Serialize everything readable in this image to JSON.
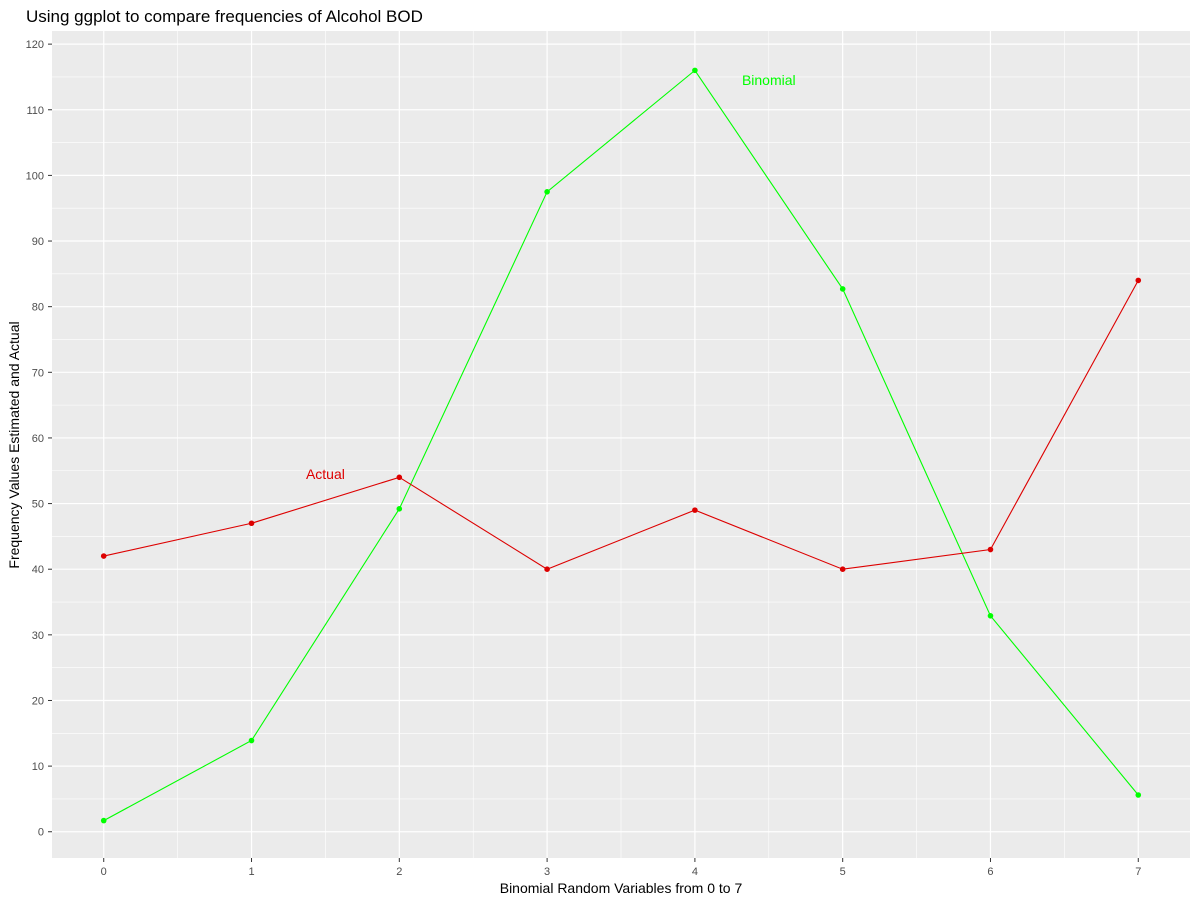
{
  "chart_data": {
    "type": "line",
    "title": "Using ggplot to compare frequencies of Alcohol BOD",
    "xlabel": "Binomial Random Variables from 0 to 7",
    "ylabel": "Frequency Values Estimated and Actual",
    "x": [
      0,
      1,
      2,
      3,
      4,
      5,
      6,
      7
    ],
    "xlim": [
      -0.35,
      7.35
    ],
    "ylim": [
      -4,
      122
    ],
    "x_ticks": [
      0,
      1,
      2,
      3,
      4,
      5,
      6,
      7
    ],
    "y_ticks": [
      0,
      10,
      20,
      30,
      40,
      50,
      60,
      70,
      80,
      90,
      100,
      110,
      120
    ],
    "grid": true,
    "background": "#ebebeb",
    "series": [
      {
        "name": "Binomial",
        "color": "#00ff00",
        "values": [
          1.7,
          13.9,
          49.2,
          97.5,
          116.0,
          82.7,
          32.9,
          5.6
        ]
      },
      {
        "name": "Actual",
        "color": "#dd0000",
        "values": [
          42,
          47,
          54,
          40,
          49,
          40,
          43,
          84
        ]
      }
    ],
    "annotations": [
      {
        "text": "Binomial",
        "x": 4.5,
        "y": 114.5,
        "color": "#00ff00"
      },
      {
        "text": "Actual",
        "x": 1.5,
        "y": 54.5,
        "color": "#dd0000"
      }
    ]
  }
}
